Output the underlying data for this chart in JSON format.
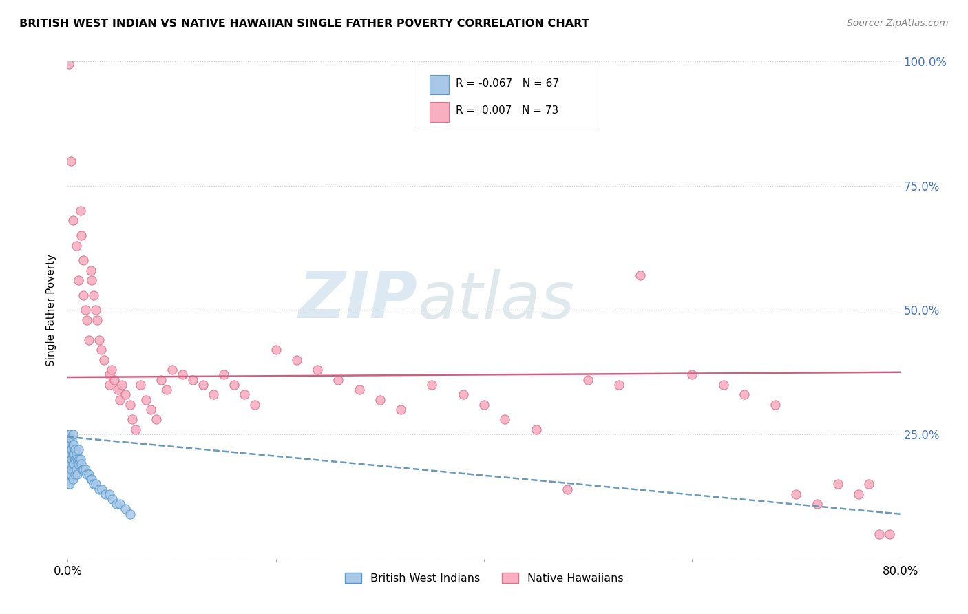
{
  "title": "BRITISH WEST INDIAN VS NATIVE HAWAIIAN SINGLE FATHER POVERTY CORRELATION CHART",
  "source": "Source: ZipAtlas.com",
  "ylabel": "Single Father Poverty",
  "xlim": [
    0.0,
    0.8
  ],
  "ylim": [
    0.0,
    1.0
  ],
  "legend_label_blue": "British West Indians",
  "legend_label_pink": "Native Hawaiians",
  "R_blue": -0.067,
  "N_blue": 67,
  "R_pink": 0.007,
  "N_pink": 73,
  "color_blue": "#a8c8e8",
  "color_pink": "#f8b0c0",
  "color_edge_blue": "#5599cc",
  "color_edge_pink": "#e07090",
  "color_trendline_blue": "#6699bb",
  "color_trendline_pink": "#cc6080",
  "watermark_zip": "ZIP",
  "watermark_atlas": "atlas",
  "blue_scatter_x": [
    0.001,
    0.001,
    0.001,
    0.001,
    0.001,
    0.001,
    0.001,
    0.001,
    0.001,
    0.001,
    0.001,
    0.001,
    0.002,
    0.002,
    0.002,
    0.002,
    0.002,
    0.002,
    0.002,
    0.002,
    0.003,
    0.003,
    0.003,
    0.003,
    0.003,
    0.004,
    0.004,
    0.004,
    0.004,
    0.005,
    0.005,
    0.005,
    0.005,
    0.005,
    0.006,
    0.006,
    0.006,
    0.007,
    0.007,
    0.007,
    0.008,
    0.008,
    0.009,
    0.009,
    0.01,
    0.01,
    0.011,
    0.012,
    0.013,
    0.014,
    0.015,
    0.017,
    0.018,
    0.02,
    0.022,
    0.023,
    0.025,
    0.027,
    0.03,
    0.033,
    0.036,
    0.04,
    0.043,
    0.047,
    0.05,
    0.055,
    0.06
  ],
  "blue_scatter_y": [
    0.25,
    0.24,
    0.23,
    0.22,
    0.21,
    0.2,
    0.2,
    0.19,
    0.18,
    0.17,
    0.16,
    0.15,
    0.25,
    0.24,
    0.22,
    0.21,
    0.2,
    0.19,
    0.17,
    0.15,
    0.23,
    0.22,
    0.21,
    0.19,
    0.17,
    0.24,
    0.22,
    0.2,
    0.18,
    0.25,
    0.23,
    0.21,
    0.19,
    0.16,
    0.23,
    0.21,
    0.19,
    0.22,
    0.2,
    0.17,
    0.21,
    0.18,
    0.2,
    0.17,
    0.22,
    0.19,
    0.2,
    0.2,
    0.19,
    0.18,
    0.18,
    0.18,
    0.17,
    0.17,
    0.16,
    0.16,
    0.15,
    0.15,
    0.14,
    0.14,
    0.13,
    0.13,
    0.12,
    0.11,
    0.11,
    0.1,
    0.09
  ],
  "pink_scatter_x": [
    0.001,
    0.003,
    0.005,
    0.008,
    0.01,
    0.012,
    0.013,
    0.015,
    0.015,
    0.017,
    0.018,
    0.02,
    0.022,
    0.023,
    0.025,
    0.027,
    0.028,
    0.03,
    0.032,
    0.035,
    0.04,
    0.04,
    0.042,
    0.045,
    0.048,
    0.05,
    0.052,
    0.055,
    0.06,
    0.062,
    0.065,
    0.07,
    0.075,
    0.08,
    0.085,
    0.09,
    0.095,
    0.1,
    0.11,
    0.12,
    0.13,
    0.14,
    0.15,
    0.16,
    0.17,
    0.18,
    0.2,
    0.22,
    0.24,
    0.26,
    0.28,
    0.3,
    0.32,
    0.35,
    0.38,
    0.4,
    0.42,
    0.45,
    0.48,
    0.5,
    0.53,
    0.55,
    0.6,
    0.63,
    0.65,
    0.68,
    0.7,
    0.72,
    0.74,
    0.76,
    0.77,
    0.78,
    0.79
  ],
  "pink_scatter_y": [
    0.995,
    0.8,
    0.68,
    0.63,
    0.56,
    0.7,
    0.65,
    0.6,
    0.53,
    0.5,
    0.48,
    0.44,
    0.58,
    0.56,
    0.53,
    0.5,
    0.48,
    0.44,
    0.42,
    0.4,
    0.37,
    0.35,
    0.38,
    0.36,
    0.34,
    0.32,
    0.35,
    0.33,
    0.31,
    0.28,
    0.26,
    0.35,
    0.32,
    0.3,
    0.28,
    0.36,
    0.34,
    0.38,
    0.37,
    0.36,
    0.35,
    0.33,
    0.37,
    0.35,
    0.33,
    0.31,
    0.42,
    0.4,
    0.38,
    0.36,
    0.34,
    0.32,
    0.3,
    0.35,
    0.33,
    0.31,
    0.28,
    0.26,
    0.14,
    0.36,
    0.35,
    0.57,
    0.37,
    0.35,
    0.33,
    0.31,
    0.13,
    0.11,
    0.15,
    0.13,
    0.15,
    0.05,
    0.05
  ],
  "trendline_blue_x0": 0.0,
  "trendline_blue_x1": 0.8,
  "trendline_blue_y0": 0.245,
  "trendline_blue_y1": 0.09,
  "trendline_pink_x0": 0.0,
  "trendline_pink_x1": 0.8,
  "trendline_pink_y0": 0.365,
  "trendline_pink_y1": 0.375
}
